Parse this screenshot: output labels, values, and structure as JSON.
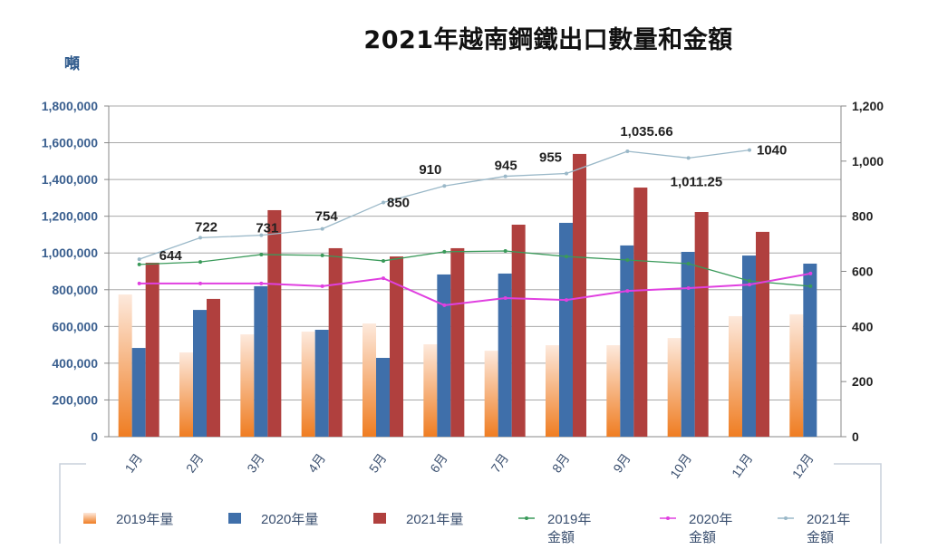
{
  "chart_data": {
    "type": "bar+line",
    "title": "2021年越南鋼鐵出口數量和金額",
    "ylabel_left": "噸",
    "ylim_left": [
      0,
      1800000
    ],
    "yticks_left": [
      "0",
      "200,000",
      "400,000",
      "600,000",
      "800,000",
      "1,000,000",
      "1,200,000",
      "1,400,000",
      "1,600,000",
      "1,800,000"
    ],
    "ylim_right": [
      0,
      1200
    ],
    "yticks_right": [
      "0",
      "200",
      "400",
      "600",
      "800",
      "1,000",
      "1,200"
    ],
    "grid": true,
    "legend_position": "bottom",
    "categories": [
      "1月",
      "2月",
      "3月",
      "4月",
      "5月",
      "6月",
      "7月",
      "8月",
      "9月",
      "10月",
      "11月",
      "12月"
    ],
    "bar_series": [
      {
        "name": "2019年量",
        "color": "#f0a060",
        "values": [
          774000,
          459000,
          557000,
          572000,
          616000,
          503000,
          468000,
          498000,
          498000,
          537000,
          656000,
          666000
        ]
      },
      {
        "name": "2020年量",
        "color": "#3f6faa",
        "values": [
          483000,
          690000,
          819000,
          582000,
          429000,
          883000,
          888000,
          1164000,
          1041000,
          1006000,
          986000,
          942000
        ]
      },
      {
        "name": "2021年量",
        "color": "#b0403e",
        "values": [
          947000,
          750000,
          1233000,
          1026000,
          981000,
          1026000,
          1154000,
          1539000,
          1356000,
          1223000,
          1115000,
          null
        ]
      }
    ],
    "line_series": [
      {
        "name": "2019年金額",
        "color": "#3a9a5a",
        "values": [
          625,
          634,
          661,
          658,
          638,
          671,
          674,
          654,
          641,
          628,
          565,
          546
        ]
      },
      {
        "name": "2020年金額",
        "color": "#e040e0",
        "values": [
          556,
          556,
          556,
          546,
          575,
          477,
          503,
          496,
          529,
          539,
          552,
          592
        ]
      },
      {
        "name": "2021年金額",
        "color": "#9ab8c8",
        "values": [
          644,
          722,
          731,
          754,
          850,
          910,
          945,
          955,
          1035.66,
          1011.25,
          1040,
          null
        ],
        "data_labels": [
          "644",
          "722",
          "731",
          "754",
          "850",
          "910",
          "945",
          "955",
          "1,035.66",
          "1,011.25",
          "1040",
          ""
        ]
      }
    ]
  }
}
